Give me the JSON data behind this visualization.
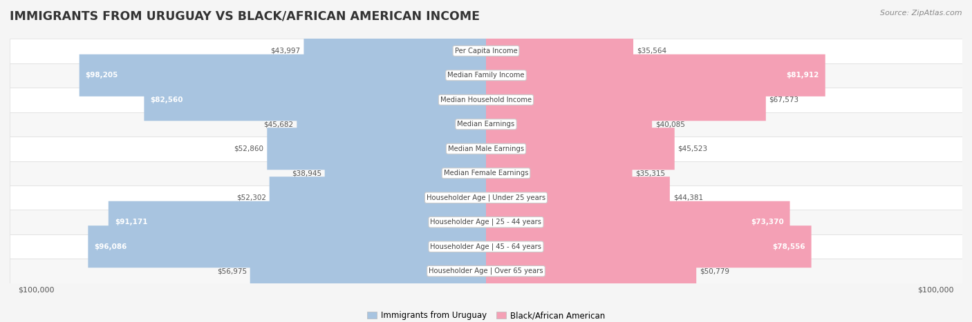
{
  "title": "IMMIGRANTS FROM URUGUAY VS BLACK/AFRICAN AMERICAN INCOME",
  "source": "Source: ZipAtlas.com",
  "categories": [
    "Per Capita Income",
    "Median Family Income",
    "Median Household Income",
    "Median Earnings",
    "Median Male Earnings",
    "Median Female Earnings",
    "Householder Age | Under 25 years",
    "Householder Age | 25 - 44 years",
    "Householder Age | 45 - 64 years",
    "Householder Age | Over 65 years"
  ],
  "uruguay_values": [
    43997,
    98205,
    82560,
    45682,
    52860,
    38945,
    52302,
    91171,
    96086,
    56975
  ],
  "black_values": [
    35564,
    81912,
    67573,
    40085,
    45523,
    35315,
    44381,
    73370,
    78556,
    50779
  ],
  "max_value": 100000,
  "uruguay_color": "#a8c4e0",
  "black_color": "#f4a0b5",
  "bg_color": "#f5f5f5",
  "row_bg_even": "#f7f7f7",
  "row_bg_odd": "#ffffff",
  "title_color": "#333333",
  "legend_label1": "Immigrants from Uruguay",
  "legend_label2": "Black/African American",
  "x_label_left": "$100,000",
  "x_label_right": "$100,000",
  "inside_label_threshold": 0.72
}
